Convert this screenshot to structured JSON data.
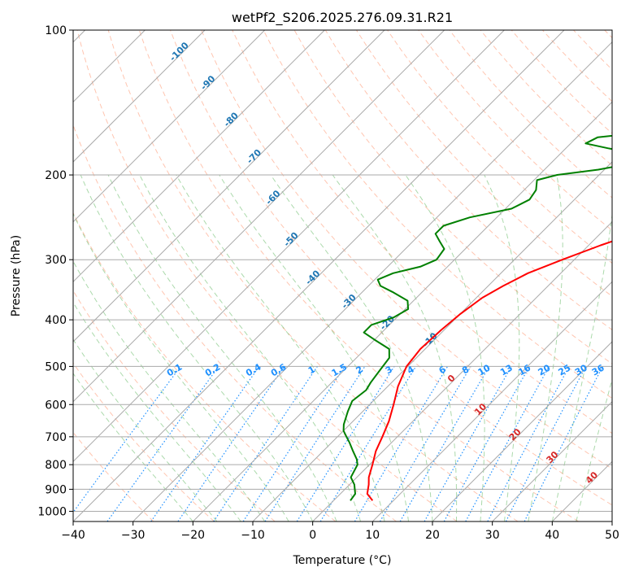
{
  "chart_data": {
    "type": "line",
    "subtype": "skew-t log-p",
    "title": "wetPf2_S206.2025.276.09.31.R21",
    "xlabel": "Temperature (°C)",
    "ylabel": "Pressure (hPa)",
    "xlim": [
      -40,
      50
    ],
    "ylim": [
      1050,
      100
    ],
    "y_scale": "log",
    "grid": true,
    "x_ticks": [
      -40,
      -30,
      -20,
      -10,
      0,
      10,
      20,
      30,
      40,
      50
    ],
    "x_tick_labels": [
      "−40",
      "−30",
      "−20",
      "−10",
      "0",
      "10",
      "20",
      "30",
      "40",
      "50"
    ],
    "y_ticks": [
      100,
      200,
      300,
      400,
      500,
      600,
      700,
      800,
      900,
      1000
    ],
    "y_tick_labels": [
      "100",
      "200",
      "300",
      "400",
      "500",
      "600",
      "700",
      "800",
      "900",
      "1000"
    ],
    "colors": {
      "temperature": "#ff0000",
      "dewpoint": "#008000",
      "isotherm": "#aaaaaa",
      "dry_adiabat": "#ff7f50",
      "moist_adiabat": "#2ca02c",
      "mixing_ratio": "#1e90ff",
      "dry_label": "#1f77b4",
      "moist_label": "#d62728"
    },
    "series": [
      {
        "name": "temperature",
        "points": [
          [
            6.5,
            950
          ],
          [
            4.5,
            920
          ],
          [
            3.2,
            880
          ],
          [
            2.0,
            850
          ],
          [
            0.5,
            800
          ],
          [
            -1.2,
            750
          ],
          [
            -2.5,
            700
          ],
          [
            -4.0,
            650
          ],
          [
            -6.0,
            600
          ],
          [
            -8.3,
            550
          ],
          [
            -10.2,
            500
          ],
          [
            -10.8,
            460
          ],
          [
            -10.5,
            420
          ],
          [
            -10.0,
            390
          ],
          [
            -9.0,
            360
          ],
          [
            -7.5,
            340
          ],
          [
            -5.5,
            320
          ],
          [
            -2.0,
            300
          ],
          [
            2.0,
            280
          ],
          [
            7.0,
            260
          ],
          [
            11.0,
            245
          ],
          [
            14.5,
            230
          ],
          [
            17.5,
            215
          ],
          [
            19.5,
            205
          ],
          [
            21.5,
            195
          ],
          [
            23.5,
            187
          ],
          [
            25.5,
            181
          ],
          [
            27.5,
            174
          ],
          [
            29.5,
            165
          ],
          [
            31.5,
            157
          ],
          [
            33.5,
            150
          ],
          [
            35.0,
            143
          ],
          [
            36.5,
            136
          ],
          [
            38.5,
            128
          ],
          [
            40.5,
            122
          ],
          [
            42.5,
            116
          ],
          [
            44.5,
            112
          ],
          [
            46.5,
            108
          ],
          [
            49.0,
            102
          ],
          [
            50.0,
            100
          ]
        ]
      },
      {
        "name": "dewpoint",
        "points": [
          [
            2.8,
            950
          ],
          [
            2.5,
            920
          ],
          [
            0.8,
            880
          ],
          [
            -1.0,
            850
          ],
          [
            -2.0,
            800
          ],
          [
            -3.0,
            780
          ],
          [
            -5.0,
            750
          ],
          [
            -7.0,
            720
          ],
          [
            -8.5,
            700
          ],
          [
            -10.0,
            680
          ],
          [
            -11.0,
            660
          ],
          [
            -12.5,
            620
          ],
          [
            -13.5,
            590
          ],
          [
            -13.0,
            560
          ],
          [
            -13.5,
            540
          ],
          [
            -14.0,
            510
          ],
          [
            -14.5,
            480
          ],
          [
            -16.0,
            460
          ],
          [
            -20.0,
            440
          ],
          [
            -23.0,
            425
          ],
          [
            -23.0,
            410
          ],
          [
            -20.5,
            395
          ],
          [
            -19.5,
            380
          ],
          [
            -21.0,
            365
          ],
          [
            -25.0,
            350
          ],
          [
            -28.0,
            340
          ],
          [
            -29.5,
            330
          ],
          [
            -28.0,
            320
          ],
          [
            -24.5,
            310
          ],
          [
            -23.0,
            300
          ],
          [
            -23.5,
            285
          ],
          [
            -25.5,
            275
          ],
          [
            -27.5,
            265
          ],
          [
            -27.5,
            255
          ],
          [
            -24.5,
            245
          ],
          [
            -19.0,
            235
          ],
          [
            -17.5,
            225
          ],
          [
            -18.0,
            215
          ],
          [
            -19.5,
            205
          ],
          [
            -17.0,
            200
          ],
          [
            -11.0,
            195
          ],
          [
            -7.0,
            190
          ],
          [
            -6.0,
            185
          ],
          [
            -8.0,
            180
          ],
          [
            -13.0,
            176
          ],
          [
            -17.5,
            172
          ],
          [
            -16.5,
            167
          ],
          [
            -11.0,
            164
          ],
          [
            -9.5,
            160
          ],
          [
            -11.5,
            155
          ],
          [
            -11.0,
            150
          ],
          [
            -10.0,
            145
          ],
          [
            -9.5,
            140
          ],
          [
            -8.5,
            135
          ],
          [
            -7.0,
            130
          ],
          [
            -6.5,
            125
          ],
          [
            -5.5,
            118
          ],
          [
            -4.0,
            112
          ],
          [
            -3.0,
            107
          ],
          [
            -2.0,
            102
          ],
          [
            -1.5,
            100
          ]
        ]
      }
    ],
    "mixing_ratio_labels": [
      "0.1",
      "0.2",
      "0.4",
      "0.6",
      "1",
      "1.5",
      "2",
      "3",
      "4",
      "6",
      "8",
      "10",
      "13",
      "16",
      "20",
      "25",
      "30",
      "36"
    ],
    "dry_adiabat_labels": [
      "-100",
      "-90",
      "-80",
      "-70",
      "-60",
      "-50",
      "-40",
      "-30",
      "-20",
      "-10"
    ],
    "moist_adiabat_labels": [
      "0",
      "10",
      "20",
      "30",
      "40"
    ]
  }
}
